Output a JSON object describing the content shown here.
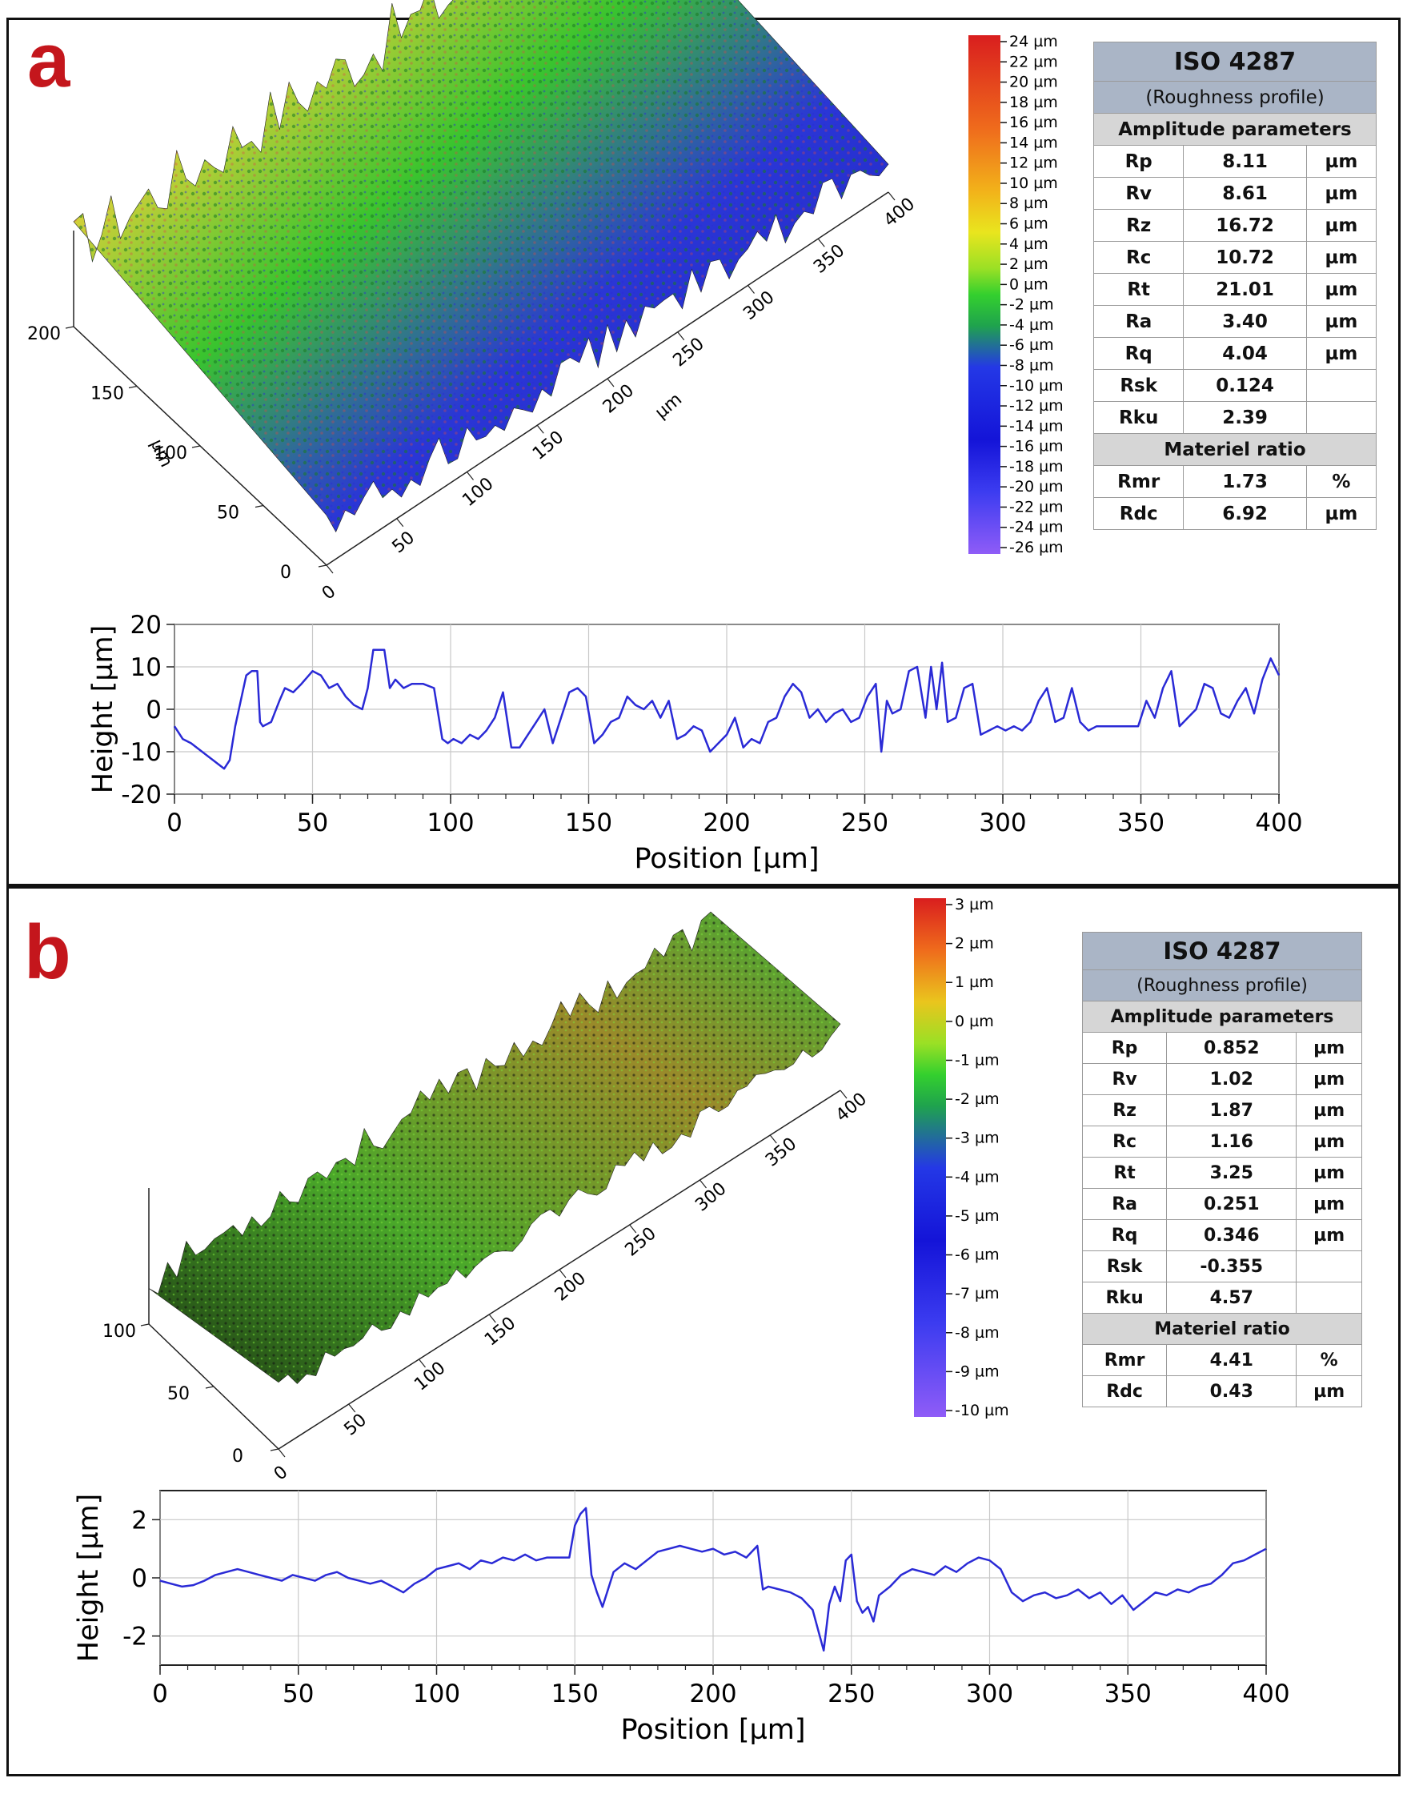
{
  "panels": {
    "a": {
      "label": "a",
      "colorbar": [
        "24 µm",
        "22 µm",
        "20 µm",
        "18 µm",
        "16 µm",
        "14 µm",
        "12 µm",
        "10 µm",
        "8 µm",
        "6 µm",
        "4 µm",
        "2 µm",
        "0 µm",
        "-2 µm",
        "-4 µm",
        "-6 µm",
        "-8 µm",
        "-10 µm",
        "-12 µm",
        "-14 µm",
        "-16 µm",
        "-18 µm",
        "-20 µm",
        "-22 µm",
        "-24 µm",
        "-26 µm"
      ],
      "surface3d": {
        "x_ticks": [
          "0",
          "50",
          "100",
          "150",
          "200",
          "250",
          "300",
          "350",
          "400"
        ],
        "x_unit": "µm",
        "y_ticks": [
          "0",
          "50",
          "100",
          "150",
          "200"
        ],
        "y_unit": "µm"
      },
      "table": {
        "title": "ISO 4287",
        "subtitle": "(Roughness profile)",
        "section1": "Amplitude parameters",
        "rows": [
          {
            "name": "Rp",
            "value": "8.11",
            "unit": "µm"
          },
          {
            "name": "Rv",
            "value": "8.61",
            "unit": "µm"
          },
          {
            "name": "Rz",
            "value": "16.72",
            "unit": "µm"
          },
          {
            "name": "Rc",
            "value": "10.72",
            "unit": "µm"
          },
          {
            "name": "Rt",
            "value": "21.01",
            "unit": "µm"
          },
          {
            "name": "Ra",
            "value": "3.40",
            "unit": "µm"
          },
          {
            "name": "Rq",
            "value": "4.04",
            "unit": "µm"
          },
          {
            "name": "Rsk",
            "value": "0.124",
            "unit": ""
          },
          {
            "name": "Rku",
            "value": "2.39",
            "unit": ""
          }
        ],
        "section2": "Materiel ratio",
        "rows2": [
          {
            "name": "Rmr",
            "value": "1.73",
            "unit": "%"
          },
          {
            "name": "Rdc",
            "value": "6.92",
            "unit": "µm"
          }
        ]
      }
    },
    "b": {
      "label": "b",
      "colorbar": [
        "3 µm",
        "2 µm",
        "1 µm",
        "0 µm",
        "-1 µm",
        "-2 µm",
        "-3 µm",
        "-4 µm",
        "-5 µm",
        "-6 µm",
        "-7 µm",
        "-8 µm",
        "-9 µm",
        "-10 µm"
      ],
      "surface3d": {
        "x_ticks": [
          "0",
          "50",
          "100",
          "150",
          "200",
          "250",
          "300",
          "350",
          "400"
        ],
        "y_ticks": [
          "0",
          "50",
          "100"
        ]
      },
      "table": {
        "title": "ISO 4287",
        "subtitle": "(Roughness profile)",
        "section1": "Amplitude parameters",
        "rows": [
          {
            "name": "Rp",
            "value": "0.852",
            "unit": "µm"
          },
          {
            "name": "Rv",
            "value": "1.02",
            "unit": "µm"
          },
          {
            "name": "Rz",
            "value": "1.87",
            "unit": "µm"
          },
          {
            "name": "Rc",
            "value": "1.16",
            "unit": "µm"
          },
          {
            "name": "Rt",
            "value": "3.25",
            "unit": "µm"
          },
          {
            "name": "Ra",
            "value": "0.251",
            "unit": "µm"
          },
          {
            "name": "Rq",
            "value": "0.346",
            "unit": "µm"
          },
          {
            "name": "Rsk",
            "value": "-0.355",
            "unit": ""
          },
          {
            "name": "Rku",
            "value": "4.57",
            "unit": ""
          }
        ],
        "section2": "Materiel ratio",
        "rows2": [
          {
            "name": "Rmr",
            "value": "4.41",
            "unit": "%"
          },
          {
            "name": "Rdc",
            "value": "0.43",
            "unit": "µm"
          }
        ]
      }
    }
  },
  "chart_data": [
    {
      "type": "line",
      "panel": "a",
      "xlabel": "Position [µm]",
      "ylabel": "Height [µm]",
      "xlim": [
        0,
        400
      ],
      "ylim": [
        -20,
        20
      ],
      "x_ticks": [
        0,
        50,
        100,
        150,
        200,
        250,
        300,
        350,
        400
      ],
      "y_ticks": [
        -20,
        -10,
        0,
        10,
        20
      ],
      "grid": true,
      "line_color": "#2a2ad6",
      "series": [
        {
          "x": [
            0,
            3,
            6,
            10,
            14,
            18,
            20,
            22,
            24,
            26,
            28,
            30,
            31,
            32,
            35,
            38,
            40,
            43,
            46,
            50,
            53,
            56,
            59,
            62,
            65,
            68,
            70,
            72,
            74,
            76,
            78,
            80,
            83,
            86,
            90,
            94,
            97,
            99,
            101,
            104,
            107,
            110,
            113,
            116,
            119,
            122,
            125,
            128,
            131,
            134,
            137,
            140,
            143,
            146,
            149,
            152,
            155,
            158,
            161,
            164,
            167,
            170,
            173,
            176,
            179,
            182,
            185,
            188,
            191,
            194,
            197,
            200,
            203,
            206,
            209,
            212,
            215,
            218,
            221,
            224,
            227,
            230,
            233,
            236,
            239,
            242,
            245,
            248,
            251,
            254,
            256,
            258,
            260,
            263,
            266,
            269,
            272,
            274,
            276,
            278,
            280,
            283,
            286,
            289,
            292,
            295,
            298,
            301,
            304,
            307,
            310,
            313,
            316,
            319,
            322,
            325,
            328,
            331,
            334,
            337,
            340,
            343,
            346,
            349,
            352,
            355,
            358,
            361,
            364,
            367,
            370,
            373,
            376,
            379,
            382,
            385,
            388,
            391,
            394,
            397,
            400
          ],
          "y": [
            -4,
            -7,
            -8,
            -10,
            -12,
            -14,
            -12,
            -4,
            2,
            8,
            9,
            9,
            -3,
            -4,
            -3,
            2,
            5,
            4,
            6,
            9,
            8,
            5,
            6,
            3,
            1,
            0,
            5,
            14,
            14,
            14,
            5,
            7,
            5,
            6,
            6,
            5,
            -7,
            -8,
            -7,
            -8,
            -6,
            -7,
            -5,
            -2,
            4,
            -9,
            -9,
            -6,
            -3,
            0,
            -8,
            -2,
            4,
            5,
            3,
            -8,
            -6,
            -3,
            -2,
            3,
            1,
            0,
            2,
            -2,
            2,
            -7,
            -6,
            -4,
            -5,
            -10,
            -8,
            -6,
            -2,
            -9,
            -7,
            -8,
            -3,
            -2,
            3,
            6,
            4,
            -2,
            0,
            -3,
            -1,
            0,
            -3,
            -2,
            3,
            6,
            -10,
            2,
            -1,
            0,
            9,
            10,
            -2,
            10,
            0,
            11,
            -3,
            -2,
            5,
            6,
            -6,
            -5,
            -4,
            -5,
            -4,
            -5,
            -3,
            2,
            5,
            -3,
            -2,
            5,
            -3,
            -5,
            -4,
            -4,
            -4,
            -4,
            -4,
            -4,
            2,
            -2,
            5,
            9,
            -4,
            -2,
            0,
            6,
            5,
            -1,
            -2,
            2,
            5,
            -1,
            7,
            12,
            8
          ],
          "style": "line"
        }
      ]
    },
    {
      "type": "line",
      "panel": "b",
      "xlabel": "Position [µm]",
      "ylabel": "Height [µm]",
      "xlim": [
        0,
        400
      ],
      "ylim": [
        -3,
        3
      ],
      "x_ticks": [
        0,
        50,
        100,
        150,
        200,
        250,
        300,
        350,
        400
      ],
      "y_ticks": [
        -2,
        0,
        2
      ],
      "grid": true,
      "line_color": "#2a2ad6",
      "series": [
        {
          "x": [
            0,
            4,
            8,
            12,
            16,
            20,
            24,
            28,
            32,
            36,
            40,
            44,
            48,
            52,
            56,
            60,
            64,
            68,
            72,
            76,
            80,
            84,
            88,
            92,
            96,
            100,
            104,
            108,
            112,
            116,
            120,
            124,
            128,
            132,
            136,
            140,
            144,
            148,
            150,
            152,
            154,
            156,
            158,
            160,
            164,
            168,
            172,
            176,
            180,
            184,
            188,
            192,
            196,
            200,
            204,
            208,
            212,
            216,
            218,
            220,
            224,
            228,
            232,
            236,
            238,
            240,
            242,
            244,
            246,
            248,
            250,
            252,
            254,
            256,
            258,
            260,
            264,
            268,
            272,
            276,
            280,
            284,
            288,
            292,
            296,
            300,
            304,
            308,
            312,
            316,
            320,
            324,
            328,
            332,
            336,
            340,
            344,
            348,
            352,
            356,
            360,
            364,
            368,
            372,
            376,
            380,
            384,
            388,
            392,
            396,
            400
          ],
          "y": [
            -0.1,
            -0.2,
            -0.3,
            -0.25,
            -0.1,
            0.1,
            0.2,
            0.3,
            0.2,
            0.1,
            0.0,
            -0.1,
            0.1,
            0.0,
            -0.1,
            0.1,
            0.2,
            0.0,
            -0.1,
            -0.2,
            -0.1,
            -0.3,
            -0.5,
            -0.2,
            0.0,
            0.3,
            0.4,
            0.5,
            0.3,
            0.6,
            0.5,
            0.7,
            0.6,
            0.8,
            0.6,
            0.7,
            0.7,
            0.7,
            1.8,
            2.2,
            2.4,
            0.1,
            -0.5,
            -1.0,
            0.2,
            0.5,
            0.3,
            0.6,
            0.9,
            1.0,
            1.1,
            1.0,
            0.9,
            1.0,
            0.8,
            0.9,
            0.7,
            1.1,
            -0.4,
            -0.3,
            -0.4,
            -0.5,
            -0.7,
            -1.1,
            -1.8,
            -2.5,
            -0.9,
            -0.3,
            -0.8,
            0.6,
            0.8,
            -0.8,
            -1.2,
            -1.0,
            -1.5,
            -0.6,
            -0.3,
            0.1,
            0.3,
            0.2,
            0.1,
            0.4,
            0.2,
            0.5,
            0.7,
            0.6,
            0.3,
            -0.5,
            -0.8,
            -0.6,
            -0.5,
            -0.7,
            -0.6,
            -0.4,
            -0.7,
            -0.5,
            -0.9,
            -0.6,
            -1.1,
            -0.8,
            -0.5,
            -0.6,
            -0.4,
            -0.5,
            -0.3,
            -0.2,
            0.1,
            0.5,
            0.6,
            0.8,
            1.0
          ],
          "style": "line"
        }
      ]
    }
  ]
}
